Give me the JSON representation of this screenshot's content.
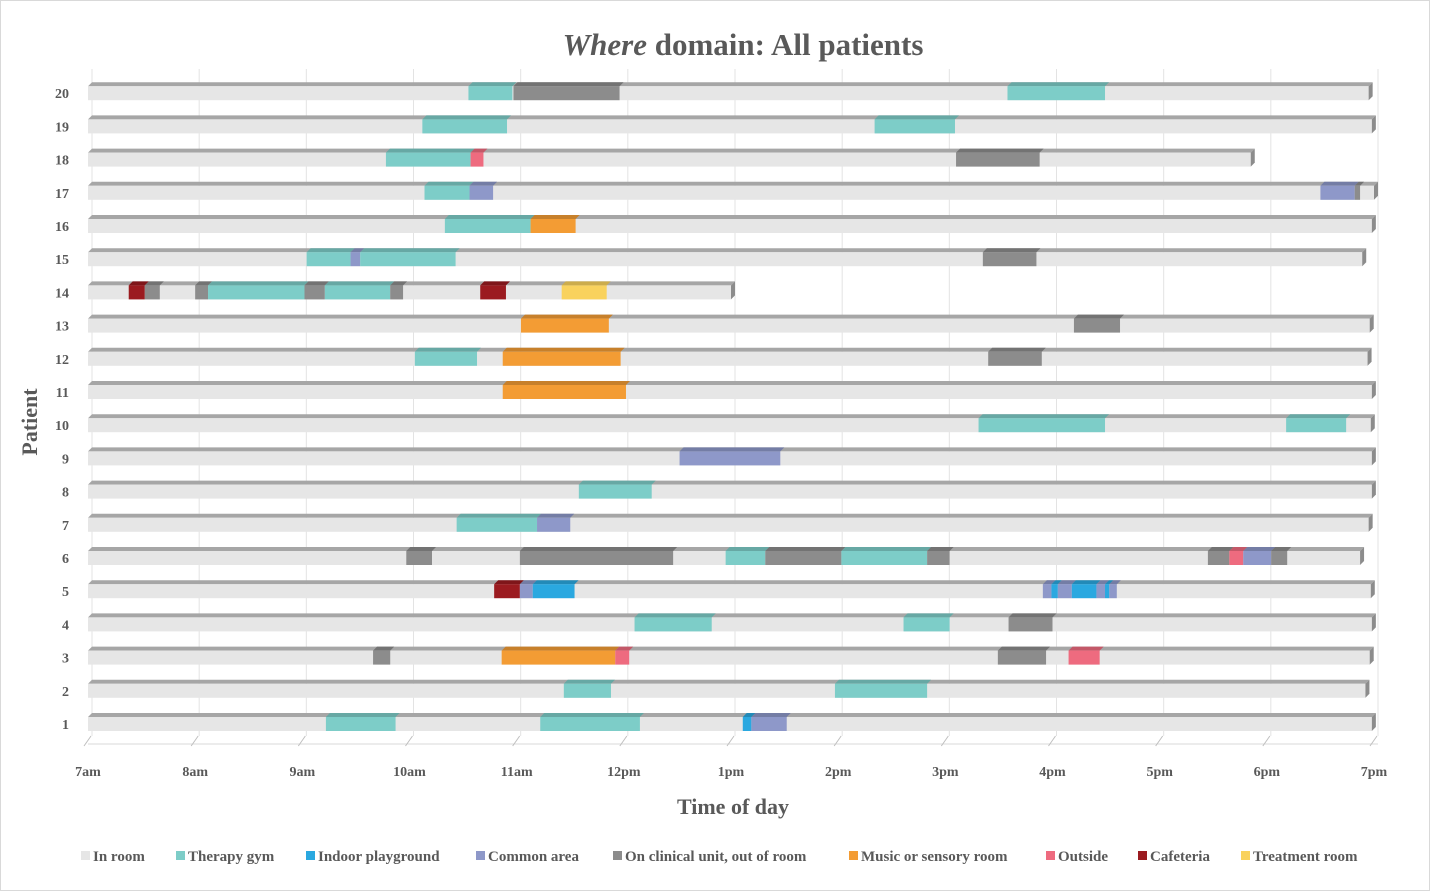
{
  "chart_data": {
    "type": "bar",
    "orientation": "horizontal-stacked-timeline",
    "title_italic": "Where",
    "title_rest": " domain: All patients",
    "xlabel": "Time of day",
    "ylabel": "Patient",
    "x_ticks": [
      "7am",
      "8am",
      "9am",
      "10am",
      "11am",
      "12pm",
      "1pm",
      "2pm",
      "3pm",
      "4pm",
      "5pm",
      "6pm",
      "7pm"
    ],
    "xlim": [
      7,
      19
    ],
    "categories": [
      "1",
      "2",
      "3",
      "4",
      "5",
      "6",
      "7",
      "8",
      "9",
      "10",
      "11",
      "12",
      "13",
      "14",
      "15",
      "16",
      "17",
      "18",
      "19",
      "20"
    ],
    "grid": "vertical",
    "legend_position": "bottom",
    "locations": [
      {
        "key": "in_room",
        "label": "In room",
        "color": "#e6e6e6"
      },
      {
        "key": "therapy_gym",
        "label": "Therapy gym",
        "color": "#7dcdc8"
      },
      {
        "key": "indoor_playground",
        "label": "Indoor playground",
        "color": "#2aa8e0"
      },
      {
        "key": "common_area",
        "label": "Common area",
        "color": "#8e98c9"
      },
      {
        "key": "clinical_unit",
        "label": "On clinical unit, out of room",
        "color": "#8c8c8c"
      },
      {
        "key": "music_room",
        "label": "Music or sensory room",
        "color": "#f39c34"
      },
      {
        "key": "outside",
        "label": "Outside",
        "color": "#ee6b7f"
      },
      {
        "key": "cafeteria",
        "label": "Cafeteria",
        "color": "#9b1b20"
      },
      {
        "key": "treatment_room",
        "label": "Treatment room",
        "color": "#f9d25d"
      }
    ],
    "patients": [
      {
        "patient": "1",
        "start": 7.0,
        "end": 18.98,
        "segments": [
          {
            "loc": "therapy_gym",
            "start": 9.22,
            "end": 9.87
          },
          {
            "loc": "therapy_gym",
            "start": 11.22,
            "end": 12.15
          },
          {
            "loc": "indoor_playground",
            "start": 13.11,
            "end": 13.19
          },
          {
            "loc": "common_area",
            "start": 13.19,
            "end": 13.52
          }
        ]
      },
      {
        "patient": "2",
        "start": 7.0,
        "end": 18.92,
        "segments": [
          {
            "loc": "therapy_gym",
            "start": 11.44,
            "end": 11.88
          },
          {
            "loc": "therapy_gym",
            "start": 13.97,
            "end": 14.83
          }
        ]
      },
      {
        "patient": "3",
        "start": 7.0,
        "end": 18.96,
        "segments": [
          {
            "loc": "clinical_unit",
            "start": 9.66,
            "end": 9.82
          },
          {
            "loc": "music_room",
            "start": 10.86,
            "end": 11.92
          },
          {
            "loc": "outside",
            "start": 11.92,
            "end": 12.05
          },
          {
            "loc": "clinical_unit",
            "start": 15.49,
            "end": 15.94
          },
          {
            "loc": "outside",
            "start": 16.15,
            "end": 16.44
          }
        ]
      },
      {
        "patient": "4",
        "start": 7.0,
        "end": 18.98,
        "segments": [
          {
            "loc": "therapy_gym",
            "start": 12.1,
            "end": 12.82
          },
          {
            "loc": "therapy_gym",
            "start": 14.61,
            "end": 15.04
          },
          {
            "loc": "clinical_unit",
            "start": 15.59,
            "end": 16.0
          }
        ]
      },
      {
        "patient": "5",
        "start": 7.0,
        "end": 18.97,
        "segments": [
          {
            "loc": "cafeteria",
            "start": 10.79,
            "end": 11.03
          },
          {
            "loc": "common_area",
            "start": 11.03,
            "end": 11.15
          },
          {
            "loc": "indoor_playground",
            "start": 11.15,
            "end": 11.54
          },
          {
            "loc": "common_area",
            "start": 15.91,
            "end": 15.99
          },
          {
            "loc": "indoor_playground",
            "start": 15.99,
            "end": 16.05
          },
          {
            "loc": "common_area",
            "start": 16.05,
            "end": 16.18
          },
          {
            "loc": "indoor_playground",
            "start": 16.18,
            "end": 16.41
          },
          {
            "loc": "common_area",
            "start": 16.41,
            "end": 16.49
          },
          {
            "loc": "indoor_playground",
            "start": 16.49,
            "end": 16.53
          },
          {
            "loc": "common_area",
            "start": 16.53,
            "end": 16.6
          }
        ]
      },
      {
        "patient": "6",
        "start": 7.0,
        "end": 18.87,
        "segments": [
          {
            "loc": "clinical_unit",
            "start": 9.97,
            "end": 10.21
          },
          {
            "loc": "clinical_unit",
            "start": 11.03,
            "end": 12.46
          },
          {
            "loc": "therapy_gym",
            "start": 12.95,
            "end": 13.32
          },
          {
            "loc": "clinical_unit",
            "start": 13.32,
            "end": 14.03
          },
          {
            "loc": "therapy_gym",
            "start": 14.03,
            "end": 14.83
          },
          {
            "loc": "clinical_unit",
            "start": 14.83,
            "end": 15.04
          },
          {
            "loc": "clinical_unit",
            "start": 17.45,
            "end": 17.65
          },
          {
            "loc": "outside",
            "start": 17.65,
            "end": 17.78
          },
          {
            "loc": "common_area",
            "start": 17.78,
            "end": 18.04
          },
          {
            "loc": "clinical_unit",
            "start": 18.04,
            "end": 18.19
          }
        ]
      },
      {
        "patient": "7",
        "start": 7.0,
        "end": 18.95,
        "segments": [
          {
            "loc": "therapy_gym",
            "start": 10.44,
            "end": 11.19
          },
          {
            "loc": "common_area",
            "start": 11.19,
            "end": 11.5
          }
        ]
      },
      {
        "patient": "8",
        "start": 7.0,
        "end": 18.98,
        "segments": [
          {
            "loc": "therapy_gym",
            "start": 11.58,
            "end": 12.26
          }
        ]
      },
      {
        "patient": "9",
        "start": 7.0,
        "end": 18.98,
        "segments": [
          {
            "loc": "common_area",
            "start": 12.52,
            "end": 13.46
          }
        ]
      },
      {
        "patient": "10",
        "start": 7.0,
        "end": 18.97,
        "segments": [
          {
            "loc": "therapy_gym",
            "start": 15.31,
            "end": 16.49
          },
          {
            "loc": "therapy_gym",
            "start": 18.18,
            "end": 18.74
          }
        ]
      },
      {
        "patient": "11",
        "start": 7.0,
        "end": 18.98,
        "segments": [
          {
            "loc": "music_room",
            "start": 10.87,
            "end": 12.02
          }
        ]
      },
      {
        "patient": "12",
        "start": 7.0,
        "end": 18.94,
        "segments": [
          {
            "loc": "therapy_gym",
            "start": 10.05,
            "end": 10.63
          },
          {
            "loc": "music_room",
            "start": 10.87,
            "end": 11.97
          },
          {
            "loc": "clinical_unit",
            "start": 15.4,
            "end": 15.9
          }
        ]
      },
      {
        "patient": "13",
        "start": 7.0,
        "end": 18.96,
        "segments": [
          {
            "loc": "music_room",
            "start": 11.04,
            "end": 11.86
          },
          {
            "loc": "clinical_unit",
            "start": 16.2,
            "end": 16.63
          }
        ]
      },
      {
        "patient": "14",
        "start": 7.0,
        "end": 13.0,
        "segments": [
          {
            "loc": "cafeteria",
            "start": 7.38,
            "end": 7.53
          },
          {
            "loc": "clinical_unit",
            "start": 7.53,
            "end": 7.67
          },
          {
            "loc": "clinical_unit",
            "start": 8.0,
            "end": 8.12
          },
          {
            "loc": "therapy_gym",
            "start": 8.12,
            "end": 9.02
          },
          {
            "loc": "clinical_unit",
            "start": 9.02,
            "end": 9.21
          },
          {
            "loc": "therapy_gym",
            "start": 9.21,
            "end": 9.82
          },
          {
            "loc": "clinical_unit",
            "start": 9.82,
            "end": 9.94
          },
          {
            "loc": "cafeteria",
            "start": 10.66,
            "end": 10.9
          },
          {
            "loc": "treatment_room",
            "start": 11.42,
            "end": 11.84
          }
        ]
      },
      {
        "patient": "15",
        "start": 7.0,
        "end": 18.89,
        "segments": [
          {
            "loc": "therapy_gym",
            "start": 9.04,
            "end": 9.45
          },
          {
            "loc": "common_area",
            "start": 9.45,
            "end": 9.54
          },
          {
            "loc": "therapy_gym",
            "start": 9.54,
            "end": 10.43
          },
          {
            "loc": "clinical_unit",
            "start": 15.35,
            "end": 15.85
          }
        ]
      },
      {
        "patient": "16",
        "start": 7.0,
        "end": 18.98,
        "segments": [
          {
            "loc": "therapy_gym",
            "start": 10.33,
            "end": 11.13
          },
          {
            "loc": "music_room",
            "start": 11.13,
            "end": 11.55
          }
        ]
      },
      {
        "patient": "17",
        "start": 7.0,
        "end": 19.0,
        "segments": [
          {
            "loc": "therapy_gym",
            "start": 10.14,
            "end": 10.56
          },
          {
            "loc": "common_area",
            "start": 10.56,
            "end": 10.78
          },
          {
            "loc": "common_area",
            "start": 18.5,
            "end": 18.82
          },
          {
            "loc": "clinical_unit",
            "start": 18.82,
            "end": 18.87
          }
        ]
      },
      {
        "patient": "18",
        "start": 7.0,
        "end": 17.85,
        "segments": [
          {
            "loc": "therapy_gym",
            "start": 9.78,
            "end": 10.57
          },
          {
            "loc": "outside",
            "start": 10.57,
            "end": 10.69
          },
          {
            "loc": "clinical_unit",
            "start": 15.1,
            "end": 15.88
          }
        ]
      },
      {
        "patient": "19",
        "start": 7.0,
        "end": 18.98,
        "segments": [
          {
            "loc": "therapy_gym",
            "start": 10.12,
            "end": 10.91
          },
          {
            "loc": "therapy_gym",
            "start": 14.34,
            "end": 15.09
          }
        ]
      },
      {
        "patient": "20",
        "start": 7.0,
        "end": 18.95,
        "segments": [
          {
            "loc": "therapy_gym",
            "start": 10.55,
            "end": 10.96
          },
          {
            "loc": "clinical_unit",
            "start": 10.97,
            "end": 11.96
          },
          {
            "loc": "therapy_gym",
            "start": 15.58,
            "end": 16.49
          }
        ]
      }
    ]
  }
}
